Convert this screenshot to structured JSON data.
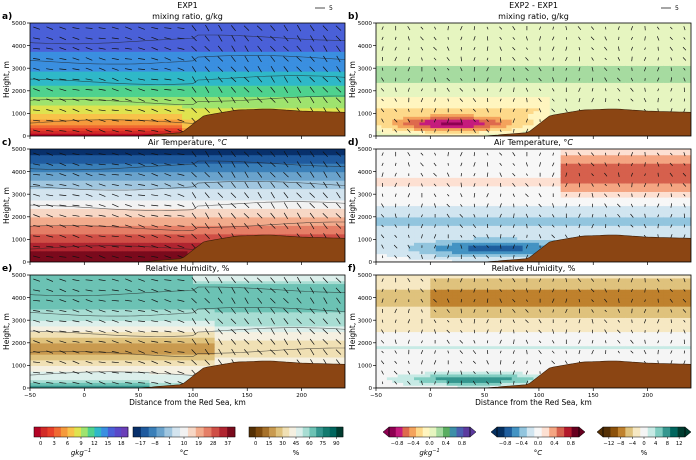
{
  "figure": {
    "columns": [
      {
        "header": "EXP1",
        "legend_key": "5"
      },
      {
        "header": "EXP2 - EXP1",
        "legend_key": "5"
      }
    ],
    "ylabel": "Height, m",
    "xlabel": "Distance from the Red Sea, km",
    "panels": [
      {
        "id": "a",
        "letter": "a)",
        "title": "mixing ratio, g/kg",
        "colormap": "mixing"
      },
      {
        "id": "b",
        "letter": "b)",
        "title": "mixing ratio, g/kg",
        "colormap": "diverge_dry_wet"
      },
      {
        "id": "c",
        "letter": "c)",
        "title": "Air Temperature, $^\\circ C$",
        "title_plain": "Air Temperature, ",
        "title_unit": "°C",
        "colormap": "temperature"
      },
      {
        "id": "d",
        "letter": "d)",
        "title": "Air Temperature, $^\\circ C$",
        "title_plain": "Air Temperature, ",
        "title_unit": "°C",
        "colormap": "diverge_temp"
      },
      {
        "id": "e",
        "letter": "e)",
        "title": "Relative Humidity, %",
        "colormap": "humidity"
      },
      {
        "id": "f",
        "letter": "f)",
        "title": "Relative Humidity, %",
        "colormap": "diverge_rh"
      }
    ],
    "colors": {
      "terrain": "#8b4513",
      "mixing_high": "#e8362a",
      "mixing_low": "#5a5ad8",
      "temp_warm": "#c83a3a",
      "temp_cold": "#3a7fb8",
      "rh_dry": "#9b6b1f",
      "rh_wet": "#2a8f86",
      "diff_mix_neg": "#6b3fa0",
      "diff_temp_neg": "#2b6aa8",
      "diff_temp_pos": "#f2a48a"
    }
  },
  "chart_data": [
    {
      "type": "heatmap",
      "panel": "a",
      "title": "mixing ratio, g/kg",
      "header": "EXP1",
      "x": [
        -50,
        0,
        50,
        100,
        150,
        200
      ],
      "xlim": [
        -50,
        240
      ],
      "ylim": [
        0,
        5000
      ],
      "yticks": [
        0,
        1000,
        2000,
        3000,
        4000,
        5000
      ],
      "terrain": {
        "x": [
          -50,
          0,
          50,
          90,
          110,
          140,
          170,
          200,
          240
        ],
        "height": [
          0,
          0,
          0,
          150,
          900,
          1150,
          1200,
          1100,
          1050
        ]
      }
    },
    {
      "type": "heatmap",
      "panel": "b",
      "title": "mixing ratio, g/kg",
      "header": "EXP2 - EXP1",
      "xlim": [
        -50,
        240
      ],
      "ylim": [
        0,
        5000
      ],
      "yticks": [
        0,
        1000,
        2000,
        3000,
        4000,
        5000
      ]
    },
    {
      "type": "heatmap",
      "panel": "c",
      "title": "Air Temperature, °C",
      "xlim": [
        -50,
        240
      ],
      "ylim": [
        0,
        5000
      ],
      "yticks": [
        0,
        1000,
        2000,
        3000,
        4000,
        5000
      ]
    },
    {
      "type": "heatmap",
      "panel": "d",
      "title": "Air Temperature, °C",
      "xlim": [
        -50,
        240
      ],
      "ylim": [
        0,
        5000
      ],
      "yticks": [
        0,
        1000,
        2000,
        3000,
        4000,
        5000
      ]
    },
    {
      "type": "heatmap",
      "panel": "e",
      "title": "Relative Humidity, %",
      "xlim": [
        -50,
        240
      ],
      "ylim": [
        0,
        5000
      ],
      "yticks": [
        0,
        1000,
        2000,
        3000,
        4000,
        5000
      ],
      "xticks": [
        -50,
        0,
        50,
        100,
        150,
        200
      ],
      "xlabel": "Distance from the Red Sea, km"
    },
    {
      "type": "heatmap",
      "panel": "f",
      "title": "Relative Humidity, %",
      "xlim": [
        -50,
        240
      ],
      "ylim": [
        0,
        5000
      ],
      "yticks": [
        0,
        1000,
        2000,
        3000,
        4000,
        5000
      ],
      "xticks": [
        -50,
        0,
        50,
        100,
        150,
        200
      ],
      "xlabel": "Distance from the Red Sea, km"
    }
  ],
  "colorbars": [
    {
      "id": "cb-mixing",
      "ticks": [
        "0",
        "3",
        "6",
        "9",
        "12",
        "15",
        "18"
      ],
      "label": "gkg",
      "label_sup": "−1",
      "colors": [
        "#b40426",
        "#d22b27",
        "#e8402a",
        "#f06a32",
        "#f59a3c",
        "#f8c24a",
        "#dfe34f",
        "#9fe36e",
        "#4fd28e",
        "#2fb8c8",
        "#3a8fe0",
        "#4a60d8",
        "#5a48c8",
        "#6b3fb8"
      ]
    },
    {
      "id": "cb-temp",
      "ticks": [
        "−17",
        "−8",
        "1",
        "10",
        "19",
        "28",
        "37"
      ],
      "label": "°C",
      "colors": [
        "#08306b",
        "#1f5a9e",
        "#3a7fb8",
        "#6aa3cc",
        "#a0c6df",
        "#d3e4ef",
        "#f2f2f2",
        "#f7d7c5",
        "#f2ab8c",
        "#e57e66",
        "#cf4f46",
        "#b02530",
        "#7a0a1c"
      ]
    },
    {
      "id": "cb-rh",
      "ticks": [
        "0",
        "15",
        "30",
        "45",
        "60",
        "75",
        "90"
      ],
      "label": "%",
      "colors": [
        "#543005",
        "#7d4a0e",
        "#a6712a",
        "#c99a4f",
        "#dfc27d",
        "#f0e0b4",
        "#f5f0e1",
        "#dcefeb",
        "#a8ddd3",
        "#6cc2b4",
        "#35978f",
        "#137a6e",
        "#01665e",
        "#003c30"
      ]
    },
    {
      "id": "cb-dmix",
      "ticks": [
        "−0.8",
        "−0.4",
        "0.0",
        "0.4",
        "0.8"
      ],
      "label": "gkg",
      "label_sup": "−1",
      "colors": [
        "#8e0152",
        "#c51b7d",
        "#de6a4d",
        "#f4a35c",
        "#fdd98a",
        "#fff5bf",
        "#e6f5c0",
        "#a6dba0",
        "#5aae61",
        "#3c8fa8",
        "#4a5fb0",
        "#5b3a9e"
      ]
    },
    {
      "id": "cb-dtemp",
      "ticks": [
        "−0.8",
        "−0.4",
        "0.0",
        "0.4",
        "0.8"
      ],
      "label": "°C",
      "colors": [
        "#053061",
        "#1f5e9e",
        "#4393c3",
        "#92c5de",
        "#d1e5f0",
        "#f7f7f7",
        "#fde0d2",
        "#f4a582",
        "#d6604d",
        "#b2182b",
        "#67001f"
      ]
    },
    {
      "id": "cb-drh",
      "ticks": [
        "−12",
        "−8",
        "−4",
        "0",
        "4",
        "8",
        "12"
      ],
      "label": "%",
      "colors": [
        "#543005",
        "#8c510a",
        "#bf812d",
        "#dfc27d",
        "#f6e8c3",
        "#f5f5f5",
        "#c7eae5",
        "#80cdc1",
        "#35978f",
        "#01665e",
        "#003c30"
      ]
    }
  ]
}
